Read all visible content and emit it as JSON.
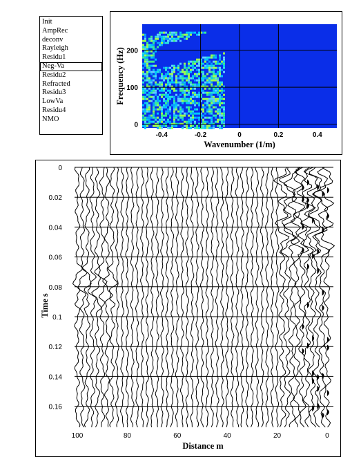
{
  "process_list": {
    "items": [
      "Init",
      "AmpRec",
      "deconv",
      "Rayleigh",
      "Residu1",
      "Neg-Va",
      "Residu2",
      "Refracted",
      "Residu3",
      "LowVa",
      "Residu4",
      "NMO"
    ],
    "selected_index": 5
  },
  "fk_plot": {
    "xlabel": "Wavenumber (1/m)",
    "ylabel": "Frequency (Hz)",
    "xticks": [
      "-0.4",
      "-0.2",
      "0",
      "0.2",
      "0.4"
    ],
    "yticks": [
      "0",
      "100",
      "200"
    ],
    "xlim": [
      -0.5,
      0.5
    ],
    "ylim": [
      -10,
      270
    ],
    "background_color": "#0a2ee8"
  },
  "seismic_plot": {
    "xlabel": "Distance m",
    "ylabel": "Time s",
    "xticks": [
      "100",
      "80",
      "60",
      "40",
      "20",
      "0"
    ],
    "yticks": [
      "0",
      "0.02",
      "0.04",
      "0.06",
      "0.08",
      "0.1",
      "0.12",
      "0.14",
      "0.16"
    ],
    "xlim": [
      100,
      0
    ],
    "ylim": [
      0,
      0.175
    ],
    "trace_spacing_m": 2
  }
}
